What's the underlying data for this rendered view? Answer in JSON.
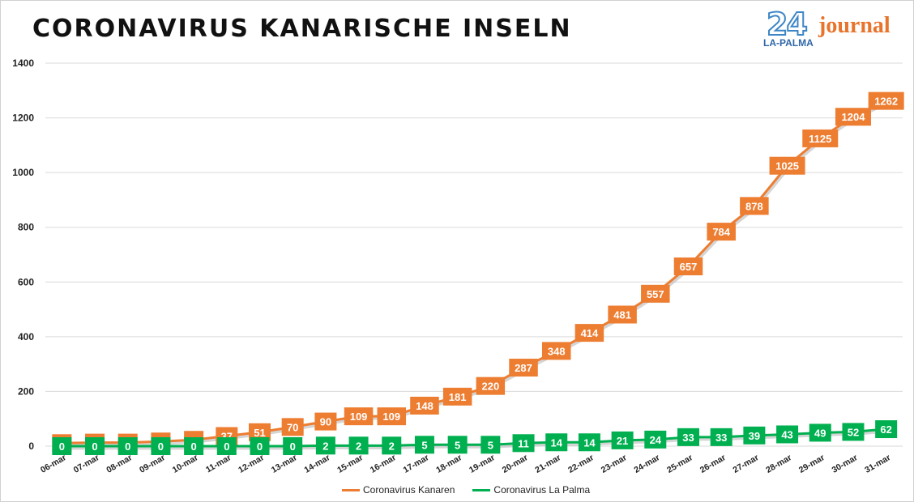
{
  "title": "CORONAVIRUS KANARISCHE INSELN",
  "logo": {
    "number": "24",
    "sub": "LA-PALMA",
    "word": "journal"
  },
  "colors": {
    "kanaren": "#ED7D31",
    "lapalma": "#00B050",
    "grid": "#d9d9d9"
  },
  "chart_data": {
    "type": "line",
    "categories": [
      "06-mar",
      "07-mar",
      "08-mar",
      "09-mar",
      "10-mar",
      "11-mar",
      "12-mar",
      "13-mar",
      "14-mar",
      "15-mar",
      "16-mar",
      "17-mar",
      "18-mar",
      "19-mar",
      "20-mar",
      "21-mar",
      "22-mar",
      "23-mar",
      "24-mar",
      "25-mar",
      "26-mar",
      "27-mar",
      "28-mar",
      "29-mar",
      "30-mar",
      "31-mar"
    ],
    "series": [
      {
        "name": "Coronavirus Kanaren",
        "color": "#ED7D31",
        "values": [
          11,
          13,
          13,
          17,
          23,
          37,
          51,
          70,
          90,
          109,
          109,
          148,
          181,
          220,
          287,
          348,
          414,
          481,
          557,
          657,
          784,
          878,
          1025,
          1125,
          1204,
          1262
        ],
        "labels": [
          "",
          "",
          "",
          "",
          "",
          "37",
          "51",
          "70",
          "90",
          "109",
          "109",
          "148",
          "181",
          "220",
          "287",
          "348",
          "414",
          "481",
          "557",
          "657",
          "784",
          "878",
          "1025",
          "1125",
          "1204",
          "1262"
        ]
      },
      {
        "name": "Coronavirus La Palma",
        "color": "#00B050",
        "values": [
          0,
          0,
          0,
          0,
          0,
          0,
          0,
          0,
          2,
          2,
          2,
          5,
          5,
          5,
          11,
          14,
          14,
          21,
          24,
          33,
          33,
          39,
          43,
          49,
          52,
          62
        ],
        "labels": [
          "0",
          "0",
          "0",
          "0",
          "0",
          "0",
          "0",
          "0",
          "2",
          "2",
          "2",
          "5",
          "5",
          "5",
          "11",
          "14",
          "14",
          "21",
          "24",
          "33",
          "33",
          "39",
          "43",
          "49",
          "52",
          "62"
        ]
      }
    ],
    "yticks": [
      "0",
      "200",
      "400",
      "600",
      "800",
      "1000",
      "1200",
      "1400"
    ],
    "ylim": [
      0,
      1400
    ],
    "grid": true,
    "legend": "bottom"
  }
}
